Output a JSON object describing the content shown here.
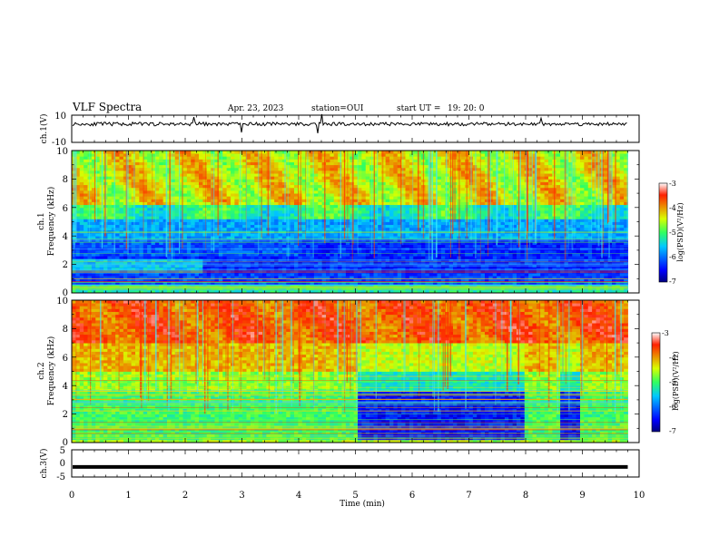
{
  "header": {
    "title": "VLF Spectra",
    "date": "Apr. 23, 2023",
    "station": "station=OUI",
    "start_label": "start UT =",
    "start_time": "19: 20: 0"
  },
  "chart_data": [
    {
      "type": "line",
      "panel": "ch1-waveform",
      "ylabel": "ch.1(V)",
      "ylim": [
        -10,
        10
      ],
      "yticks": [
        "10",
        "-10"
      ],
      "xlim": [
        0,
        10
      ],
      "trace_level": 3.5
    },
    {
      "type": "heatmap",
      "panel": "ch1-spectrogram",
      "ylabel": "ch.1",
      "ylabel2": "Frequency (kHz)",
      "ylim": [
        0,
        10
      ],
      "yticks": [
        "0",
        "2",
        "4",
        "6",
        "8",
        "10"
      ],
      "xlim": [
        0,
        10
      ],
      "data_end_min": 9.8,
      "colorbar": {
        "label": "log(PSD)(V²/Hz)",
        "range": [
          -7,
          -3
        ],
        "ticks": [
          "-7",
          "-6",
          "-5",
          "-4",
          "-3"
        ]
      }
    },
    {
      "type": "heatmap",
      "panel": "ch2-spectrogram",
      "ylabel": "ch.2",
      "ylabel2": "Frequency (kHz)",
      "ylim": [
        0,
        10
      ],
      "yticks": [
        "0",
        "2",
        "4",
        "6",
        "8",
        "10"
      ],
      "xlim": [
        0,
        10
      ],
      "data_end_min": 9.8,
      "colorbar": {
        "label": "log(PSD)(V²/Hz)",
        "range": [
          -7,
          -3
        ],
        "ticks": [
          "-7",
          "-6",
          "-5",
          "-4",
          "-3"
        ]
      }
    },
    {
      "type": "line",
      "panel": "ch3-waveform",
      "ylabel": "ch.3(V)",
      "ylim": [
        -5,
        5
      ],
      "yticks": [
        "5",
        "0",
        "-5"
      ],
      "xlim": [
        0,
        10
      ],
      "trace_level": -1.3
    }
  ],
  "xaxis": {
    "label": "Time (min)",
    "ticks": [
      "0",
      "1",
      "2",
      "3",
      "4",
      "5",
      "6",
      "7",
      "8",
      "9",
      "10"
    ]
  }
}
